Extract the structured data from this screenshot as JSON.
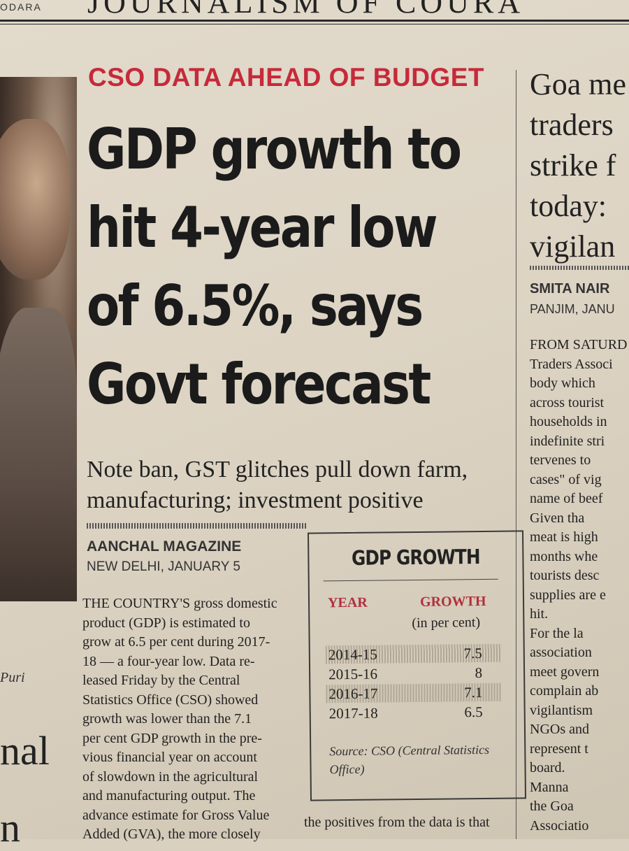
{
  "masthead": {
    "left_fragment": "ODARA",
    "title": "JOURNALISM OF COURA"
  },
  "left_column": {
    "caption": "Puri",
    "headline_fragment_1": "nal",
    "headline_fragment_2": "n"
  },
  "story": {
    "kicker": "CSO DATA AHEAD OF BUDGET",
    "headline_lines": [
      "GDP growth to",
      "hit 4-year low",
      "of 6.5%, says",
      "Govt forecast"
    ],
    "deck_lines": [
      "Note ban, GST glitches pull down farm,",
      "manufacturing; investment positive"
    ],
    "byline": "AANCHAL MAGAZINE",
    "dateline": "NEW DELHI, JANUARY 5",
    "body_lines": [
      "THE COUNTRY'S gross domestic",
      "product (GDP) is estimated to",
      "grow at 6.5 per cent during 2017-",
      "18 — a four-year low. Data re-",
      "leased Friday by the Central",
      "Statistics Office (CSO) showed",
      "growth was lower than the 7.1",
      "per cent GDP growth in the pre-",
      "vious financial year on account",
      "of slowdown in the agricultural",
      "and manufacturing output. The",
      "advance estimate for Gross Value",
      "Added (GVA), the more closely"
    ],
    "continuation": "the positives from the data is that"
  },
  "gdp_box": {
    "title": "GDP GROWTH",
    "col_year": "YEAR",
    "col_growth": "GROWTH",
    "col_unit": "(in per cent)",
    "rows": [
      {
        "year": "2014-15",
        "value": "7.5"
      },
      {
        "year": "2015-16",
        "value": "8"
      },
      {
        "year": "2016-17",
        "value": "7.1"
      },
      {
        "year": "2017-18",
        "value": "6.5"
      }
    ],
    "source": "Source: CSO (Central Statistics Office)"
  },
  "right_story": {
    "headline_lines": [
      "Goa me",
      "traders",
      "strike f",
      "today:",
      "vigilan"
    ],
    "byline": "SMITA NAIR",
    "dateline": "PANJIM, JANU",
    "body_lines": [
      "FROM SATURD",
      "Traders Associ",
      "body which",
      "across tourist",
      "households in",
      "indefinite stri",
      "tervenes to",
      "cases\" of vig",
      "name of beef",
      "Given tha",
      "meat is high",
      "months whe",
      "tourists desc",
      "supplies are e",
      "hit.",
      "For the la",
      "association",
      "meet govern",
      "complain ab",
      "vigilantism",
      "NGOs and",
      "represent t",
      "board.",
      "Manna",
      "the Goa",
      "Associatio"
    ]
  }
}
